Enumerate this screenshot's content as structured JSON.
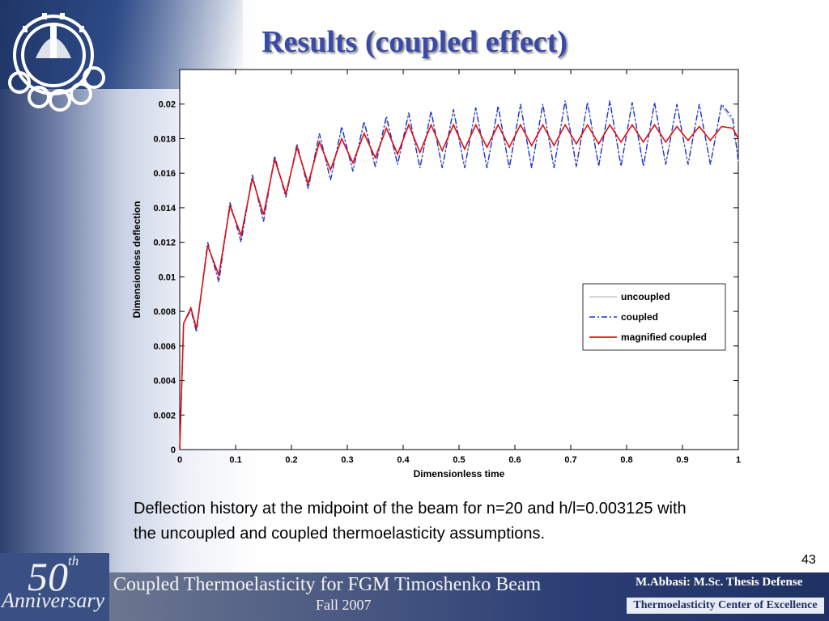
{
  "slide": {
    "title": "Results (coupled effect)",
    "caption": "Deflection history at  the midpoint of the beam for n=20 and h/l=0.003125 with the uncoupled and coupled thermoelasticity assumptions.",
    "page_number": "43"
  },
  "footer": {
    "anniversary_number": "50",
    "anniversary_suffix": "th",
    "anniversary_word": "Anniversary",
    "title": "Coupled Thermoelasticity for FGM Timoshenko Beam",
    "term": "Fall 2007",
    "author": "M.Abbasi: M.Sc. Thesis Defense",
    "center": "Thermoelasticity Center of Excellence"
  },
  "colors": {
    "title": "#3a4aa8",
    "coupled": "#1a2fd6",
    "magnified": "#e01010",
    "uncoupled": "#bdbdbd",
    "footer_dark": "#1e3162"
  },
  "chart_data": {
    "type": "line",
    "xlabel": "Dimensionless time",
    "ylabel": "Dimensionless deflection",
    "xlim": [
      0,
      1
    ],
    "ylim": [
      0,
      0.022
    ],
    "xticks": [
      "0",
      "0.1",
      "0.2",
      "0.3",
      "0.4",
      "0.5",
      "0.6",
      "0.7",
      "0.8",
      "0.9",
      "1"
    ],
    "yticks": [
      "0",
      "0.002",
      "0.004",
      "0.006",
      "0.008",
      "0.01",
      "0.012",
      "0.014",
      "0.016",
      "0.018",
      "0.02"
    ],
    "legend_position": "right",
    "series": [
      {
        "name": "uncoupled",
        "style": "solid",
        "x": [
          0,
          0.007,
          0.02,
          0.03,
          0.05,
          0.07,
          0.09,
          0.11,
          0.13,
          0.15,
          0.17,
          0.19,
          0.21,
          0.23,
          0.25,
          0.27,
          0.29,
          0.31,
          0.33,
          0.35,
          0.37,
          0.39,
          0.41,
          0.43,
          0.45,
          0.47,
          0.49,
          0.51,
          0.53,
          0.55,
          0.57,
          0.59,
          0.61,
          0.63,
          0.65,
          0.67,
          0.69,
          0.71,
          0.73,
          0.75,
          0.77,
          0.79,
          0.81,
          0.83,
          0.85,
          0.87,
          0.89,
          0.91,
          0.93,
          0.95,
          0.97,
          0.99,
          1.0
        ],
        "y": [
          0,
          0.0073,
          0.0081,
          0.0069,
          0.0119,
          0.0098,
          0.0143,
          0.0121,
          0.0159,
          0.0132,
          0.017,
          0.0146,
          0.0177,
          0.0151,
          0.0183,
          0.0156,
          0.0186,
          0.0161,
          0.0189,
          0.0163,
          0.0191,
          0.0165,
          0.0194,
          0.0163,
          0.0195,
          0.0163,
          0.0196,
          0.0163,
          0.0198,
          0.0163,
          0.0198,
          0.0163,
          0.0199,
          0.0163,
          0.0199,
          0.0163,
          0.0201,
          0.0163,
          0.0201,
          0.0164,
          0.0201,
          0.0164,
          0.0201,
          0.0164,
          0.02,
          0.0165,
          0.02,
          0.0165,
          0.02,
          0.0165,
          0.0199,
          0.019,
          0.0167
        ]
      },
      {
        "name": "coupled",
        "style": "dashdot",
        "x": [
          0,
          0.007,
          0.02,
          0.03,
          0.05,
          0.07,
          0.09,
          0.11,
          0.13,
          0.15,
          0.17,
          0.19,
          0.21,
          0.23,
          0.25,
          0.27,
          0.29,
          0.31,
          0.33,
          0.35,
          0.37,
          0.39,
          0.41,
          0.43,
          0.45,
          0.47,
          0.49,
          0.51,
          0.53,
          0.55,
          0.57,
          0.59,
          0.61,
          0.63,
          0.65,
          0.67,
          0.69,
          0.71,
          0.73,
          0.75,
          0.77,
          0.79,
          0.81,
          0.83,
          0.85,
          0.87,
          0.89,
          0.91,
          0.93,
          0.95,
          0.97,
          0.99,
          1.0
        ],
        "y": [
          0,
          0.0073,
          0.0081,
          0.0068,
          0.012,
          0.0097,
          0.0143,
          0.012,
          0.0159,
          0.0132,
          0.017,
          0.0146,
          0.0177,
          0.0151,
          0.0183,
          0.0156,
          0.0187,
          0.0161,
          0.019,
          0.0164,
          0.0193,
          0.0165,
          0.0195,
          0.0163,
          0.0196,
          0.0163,
          0.0197,
          0.0163,
          0.0198,
          0.0163,
          0.0199,
          0.0163,
          0.02,
          0.0163,
          0.02,
          0.0163,
          0.0202,
          0.0164,
          0.0201,
          0.0164,
          0.0202,
          0.0164,
          0.0201,
          0.0164,
          0.0201,
          0.0165,
          0.02,
          0.0165,
          0.02,
          0.0165,
          0.02,
          0.0192,
          0.0167
        ]
      },
      {
        "name": "magnified coupled",
        "style": "solid",
        "x": [
          0,
          0.007,
          0.02,
          0.03,
          0.05,
          0.07,
          0.09,
          0.11,
          0.13,
          0.15,
          0.17,
          0.19,
          0.21,
          0.23,
          0.25,
          0.27,
          0.29,
          0.31,
          0.33,
          0.35,
          0.37,
          0.39,
          0.41,
          0.43,
          0.45,
          0.47,
          0.49,
          0.51,
          0.53,
          0.55,
          0.57,
          0.59,
          0.61,
          0.63,
          0.65,
          0.67,
          0.69,
          0.71,
          0.73,
          0.75,
          0.77,
          0.79,
          0.81,
          0.83,
          0.85,
          0.87,
          0.89,
          0.91,
          0.93,
          0.95,
          0.97,
          0.99,
          1.0
        ],
        "y": [
          0,
          0.0073,
          0.0082,
          0.007,
          0.0118,
          0.0101,
          0.0141,
          0.0124,
          0.0157,
          0.0136,
          0.0168,
          0.0148,
          0.0175,
          0.0154,
          0.0178,
          0.0162,
          0.018,
          0.0166,
          0.0183,
          0.0169,
          0.0186,
          0.0171,
          0.0188,
          0.0172,
          0.0188,
          0.0173,
          0.0188,
          0.0174,
          0.0188,
          0.0175,
          0.0188,
          0.0175,
          0.0188,
          0.0176,
          0.0188,
          0.0176,
          0.0188,
          0.0177,
          0.0188,
          0.0177,
          0.0188,
          0.0178,
          0.0188,
          0.0178,
          0.0188,
          0.0178,
          0.0187,
          0.0179,
          0.0187,
          0.0179,
          0.0187,
          0.0186,
          0.018
        ]
      }
    ]
  }
}
